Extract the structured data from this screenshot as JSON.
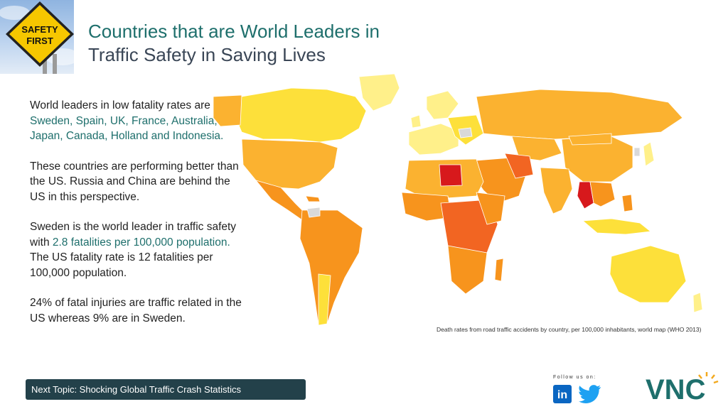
{
  "slide": {
    "title_line1": "Countries that are World Leaders in",
    "title_line2": "Traffic Safety in Saving Lives"
  },
  "sign": {
    "line1": "SAFETY",
    "line2": "FIRST"
  },
  "body": {
    "p1_a": "World leaders in low fatality rates are ",
    "p1_b": "Sweden, Spain, UK, France, Australia, Japan, Canada, Holland and Indonesia.",
    "p2": "These countries are performing better than the US. Russia and China are behind the US in this perspective.",
    "p3_a": "Sweden is the world leader in traffic safety with ",
    "p3_b": "2.8 fatalities per 100,000 population.",
    "p3_c": " The US fatality rate is 12 fatalities per 100,000 population.",
    "p4": "24% of fatal injuries are traffic related in the US whereas 9% are in Sweden."
  },
  "map": {
    "caption": "Death rates from road traffic accidents by country, per 100,000 inhabitants, world map (WHO 2013)",
    "colors": {
      "lowest": "#fff08a",
      "low": "#fde03a",
      "mid": "#fbb230",
      "high": "#f7941d",
      "higher": "#f26522",
      "highest": "#d7191c",
      "nodata": "#d9d9d9"
    }
  },
  "footer": {
    "next_topic": "Next Topic: Shocking Global Traffic Crash Statistics",
    "follow_label": "Follow us on:",
    "linkedin": "in",
    "brand": "VNC"
  },
  "colors": {
    "accent": "#1e6f6c",
    "banner": "#23414a",
    "linkedin": "#0a66c2",
    "twitter": "#1da1f2"
  }
}
